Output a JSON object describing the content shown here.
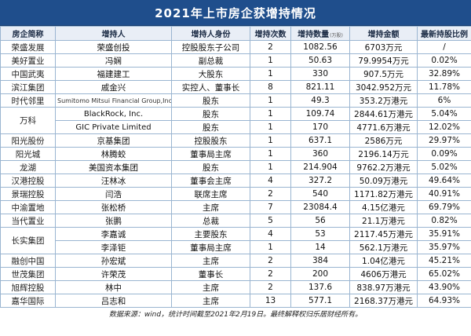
{
  "title": "2021年上市房企获增持情况",
  "headers": {
    "company": "房企简称",
    "holder": "增持人",
    "identity": "增持人身份",
    "times": "增持次数",
    "quantity": "增持数量",
    "quantity_unit": "(万股)",
    "amount": "增持金额",
    "ratio": "最新持股比例"
  },
  "rows": [
    {
      "company": "荣盛发展",
      "holder": "荣盛创投",
      "identity": "控股股东子公司",
      "times": "2",
      "quantity": "1082.56",
      "amount": "6703万元",
      "ratio": "/"
    },
    {
      "company": "美好置业",
      "holder": "冯娴",
      "identity": "副总裁",
      "times": "1",
      "quantity": "50.63",
      "amount": "79.9954万元",
      "ratio": "0.02%"
    },
    {
      "company": "中国武夷",
      "holder": "福建建工",
      "identity": "大股东",
      "times": "1",
      "quantity": "330",
      "amount": "907.5万元",
      "ratio": "32.89%"
    },
    {
      "company": "滨江集团",
      "holder": "戚金兴",
      "identity": "实控人、董事长",
      "times": "8",
      "quantity": "821.11",
      "amount": "3042.952万元",
      "ratio": "11.78%"
    },
    {
      "company": "时代邻里",
      "holder": "Sumitomo Mitsui Financial Group,Inc",
      "identity": "股东",
      "times": "1",
      "quantity": "49.3",
      "amount": "353.2万港元",
      "ratio": "6%"
    },
    {
      "company": "万科",
      "holder": "BlackRock, Inc.",
      "identity": "股东",
      "times": "1",
      "quantity": "109.74",
      "amount": "2844.61万港元",
      "ratio": "5.04%"
    },
    {
      "company": "",
      "holder": "GIC Private Limited",
      "identity": "股东",
      "times": "1",
      "quantity": "170",
      "amount": "4771.6万港元",
      "ratio": "12.02%"
    },
    {
      "company": "阳光股份",
      "holder": "京基集团",
      "identity": "控股股东",
      "times": "1",
      "quantity": "637.1",
      "amount": "2586万元",
      "ratio": "29.97%"
    },
    {
      "company": "阳光城",
      "holder": "林腾蛟",
      "identity": "董事局主席",
      "times": "1",
      "quantity": "360",
      "amount": "2196.14万元",
      "ratio": "0.09%"
    },
    {
      "company": "龙湖",
      "holder": "美国资本集团",
      "identity": "股东",
      "times": "1",
      "quantity": "214.904",
      "amount": "9762.2万港元",
      "ratio": "5.02%"
    },
    {
      "company": "汉港控股",
      "holder": "汪林冰",
      "identity": "董事会主席",
      "times": "4",
      "quantity": "327.2",
      "amount": "50.09万港元",
      "ratio": "49.64%"
    },
    {
      "company": "景瑞控股",
      "holder": "闫浩",
      "identity": "联席主席",
      "times": "2",
      "quantity": "540",
      "amount": "1171.82万港元",
      "ratio": "40.91%"
    },
    {
      "company": "中渝置地",
      "holder": "张松桥",
      "identity": "主席",
      "times": "7",
      "quantity": "23084.4",
      "amount": "4.15亿港元",
      "ratio": "69.79%"
    },
    {
      "company": "当代置业",
      "holder": "张鹏",
      "identity": "总裁",
      "times": "5",
      "quantity": "56",
      "amount": "21.1万港元",
      "ratio": "0.82%"
    },
    {
      "company": "长实集团",
      "holder": "李嘉诚",
      "identity": "主要股东",
      "times": "4",
      "quantity": "53",
      "amount": "2117.45万港元",
      "ratio": "35.91%"
    },
    {
      "company": "",
      "holder": "李泽钜",
      "identity": "董事局主席",
      "times": "1",
      "quantity": "14",
      "amount": "562.1万港元",
      "ratio": "35.97%"
    },
    {
      "company": "融创中国",
      "holder": "孙宏斌",
      "identity": "主席",
      "times": "2",
      "quantity": "384",
      "amount": "1.04亿港元",
      "ratio": "45.21%"
    },
    {
      "company": "世茂集团",
      "holder": "许荣茂",
      "identity": "董事长",
      "times": "2",
      "quantity": "200",
      "amount": "4606万港元",
      "ratio": "65.02%"
    },
    {
      "company": "旭辉控股",
      "holder": "林中",
      "identity": "主席",
      "times": "2",
      "quantity": "137.6",
      "amount": "838.97万港元",
      "ratio": "43.90%"
    },
    {
      "company": "嘉华国际",
      "holder": "吕志和",
      "identity": "主席",
      "times": "13",
      "quantity": "577.1",
      "amount": "2168.37万港元",
      "ratio": "64.93%"
    }
  ],
  "footer": "数据来源：wind，统计时间截至2021年2月19日。最终解释权归乐居财经所有。"
}
